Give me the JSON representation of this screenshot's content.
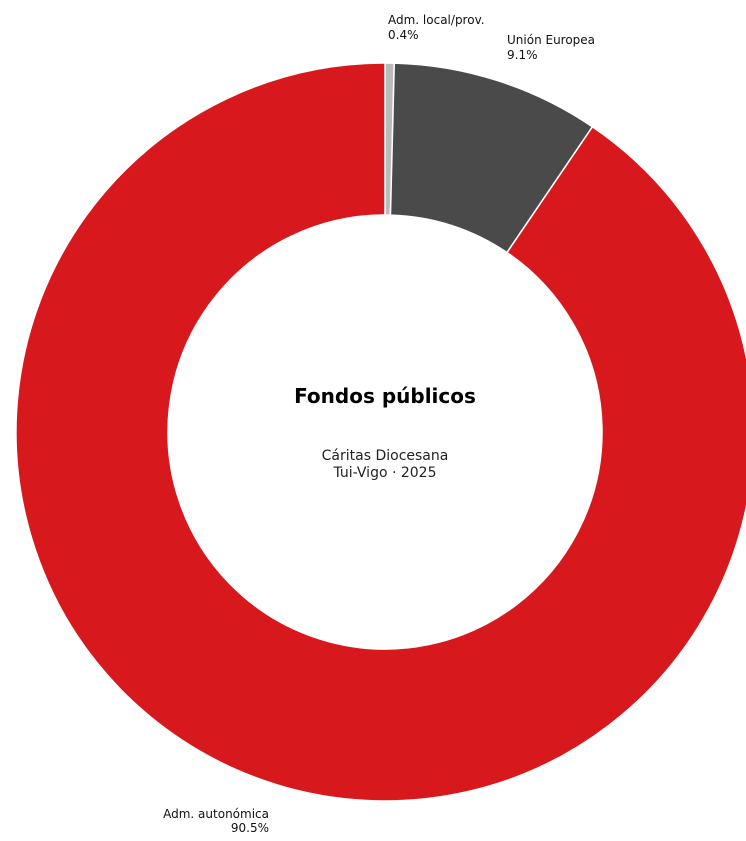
{
  "chart_data": {
    "type": "pie",
    "variant": "donut",
    "title": "Fondos públicos",
    "subtitle_lines": [
      "Cáritas Diocesana",
      "Tui-Vigo · 2025"
    ],
    "start": "top (12 o'clock)",
    "direction": "clockwise",
    "slices": [
      {
        "name": "Adm. local/prov.",
        "percent_label": "0.4%",
        "value": 0.4,
        "color": "#bbbbbb"
      },
      {
        "name": "Unión Europea",
        "percent_label": "9.1%",
        "value": 9.1,
        "color": "#4a4a4a"
      },
      {
        "name": "Adm. autonómica",
        "percent_label": "90.5%",
        "value": 90.5,
        "color": "#d7191e"
      }
    ]
  }
}
